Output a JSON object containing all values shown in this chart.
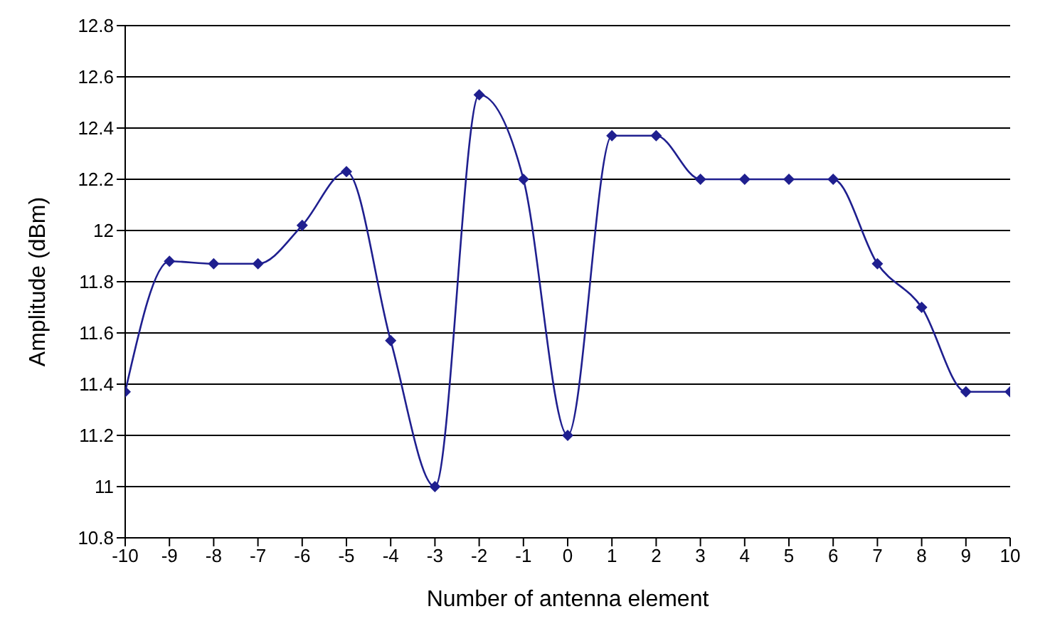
{
  "chart_data": {
    "type": "line",
    "xlabel": "Number of antenna element",
    "ylabel": "Amplitude (dBm)",
    "x": [
      -10,
      -9,
      -8,
      -7,
      -6,
      -5,
      -4,
      -3,
      -2,
      -1,
      0,
      1,
      2,
      3,
      4,
      5,
      6,
      7,
      8,
      9,
      10
    ],
    "series": [
      {
        "color": "#1f1f8f",
        "values": [
          11.37,
          11.88,
          11.87,
          11.87,
          12.02,
          12.23,
          11.57,
          11.0,
          12.53,
          12.2,
          11.2,
          12.37,
          12.37,
          12.2,
          12.2,
          12.2,
          12.2,
          11.87,
          11.7,
          11.37,
          11.37
        ]
      }
    ],
    "xlim": [
      -10,
      10
    ],
    "xticks": [
      -10,
      -9,
      -8,
      -7,
      -6,
      -5,
      -4,
      -3,
      -2,
      -1,
      0,
      1,
      2,
      3,
      4,
      5,
      6,
      7,
      8,
      9,
      10
    ],
    "ylim": [
      10.8,
      12.8
    ],
    "yticks": [
      10.8,
      11,
      11.2,
      11.4,
      11.6,
      11.8,
      12,
      12.2,
      12.4,
      12.6,
      12.8
    ],
    "grid": "y",
    "legend": false,
    "marker": "diamond",
    "line_style": "solid"
  }
}
